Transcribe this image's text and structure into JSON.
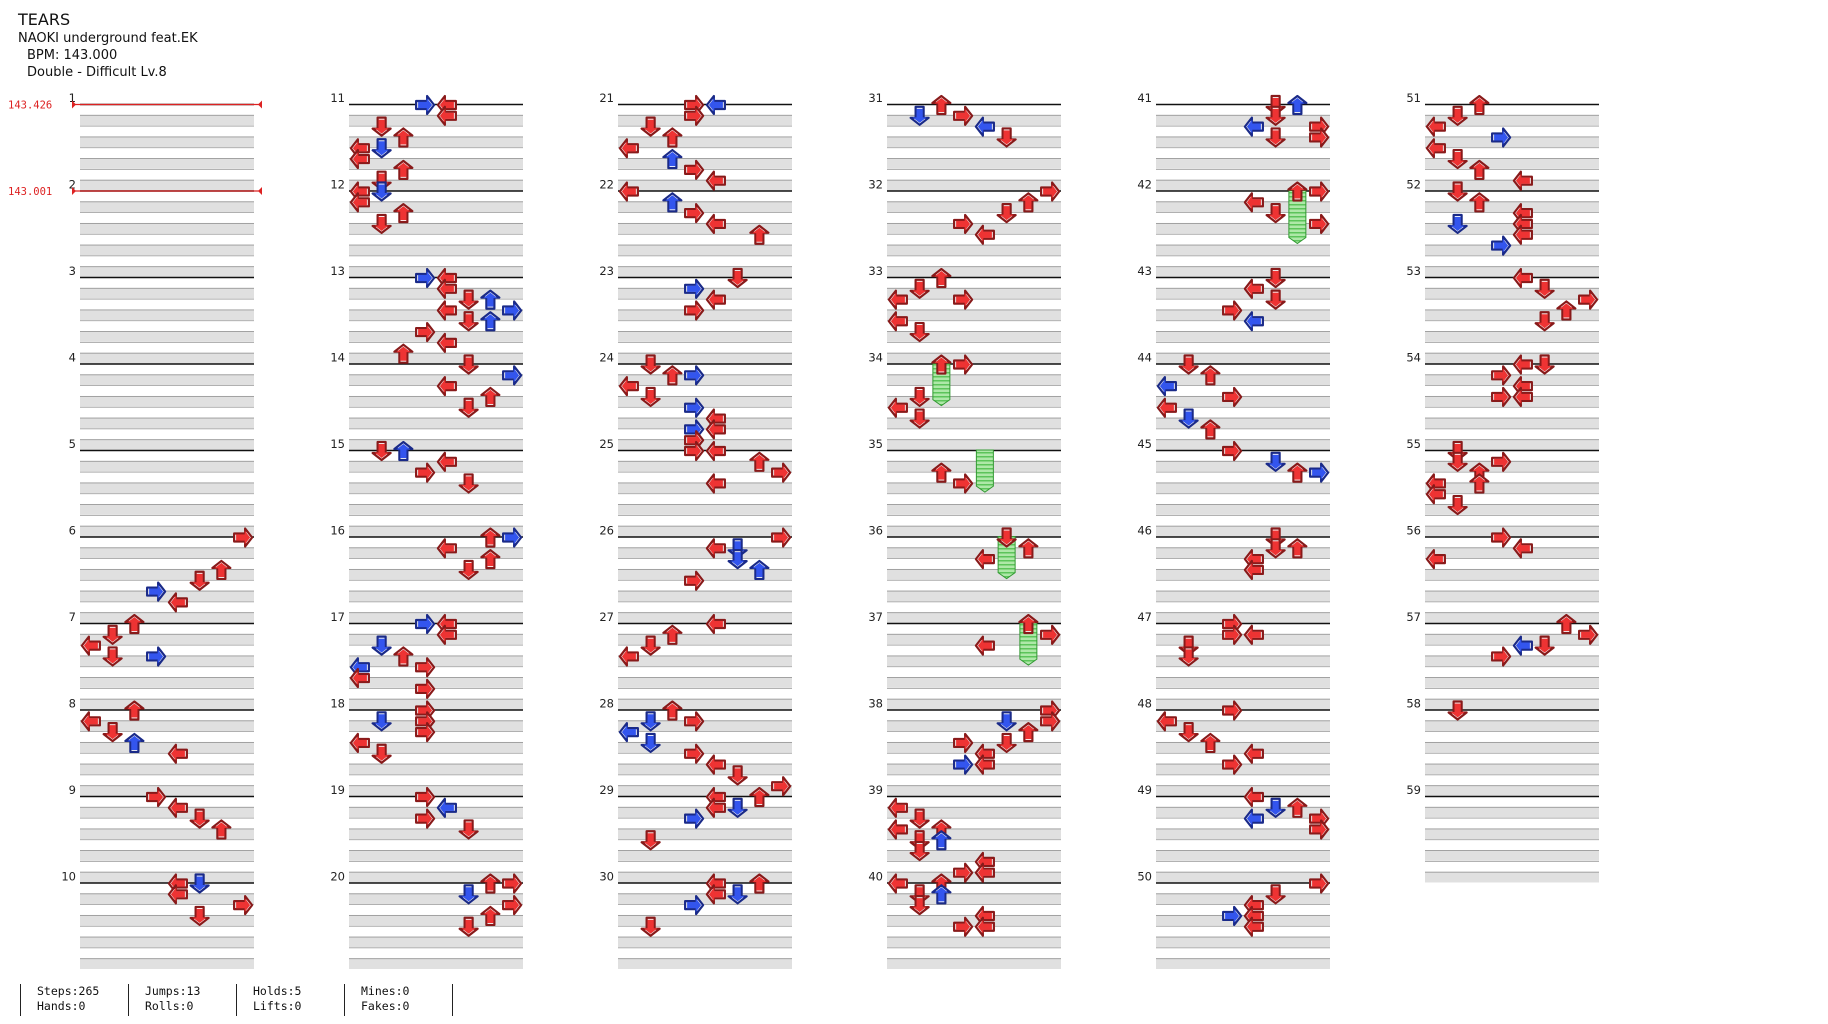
{
  "song": {
    "title": "TEARS",
    "artist": "NAOKI underground feat.EK",
    "bpm_label": "BPM: 143.000",
    "difficulty": "Double - Difficult  Lv.8"
  },
  "bpm_changes": [
    {
      "measure": 1,
      "label": "143.426"
    },
    {
      "measure": 2,
      "label": "143.001"
    }
  ],
  "layout": {
    "columns": 6,
    "measures_per_column": 10,
    "total_measures": 59,
    "lanes": 8
  },
  "colors": {
    "red_note": "#ee3333",
    "blue_note": "#3355ee",
    "hold_fill": "#88dd88",
    "hold_stroke": "#339933",
    "stripe": "#e0e0e0",
    "bpm_line": "#dd2222"
  },
  "icons": {
    "left": "arrow-left-icon",
    "down": "arrow-down-icon",
    "up": "arrow-up-icon",
    "right": "arrow-right-icon"
  },
  "stats": {
    "steps": "Steps:265",
    "hands": "Hands:0",
    "jumps": "Jumps:13",
    "rolls": "Rolls:0",
    "holds": "Holds:5",
    "lifts": "Lifts:0",
    "mines": "Mines:0",
    "fakes": "Fakes:0"
  },
  "notes": {
    "6": [
      [
        0,
        7,
        "r"
      ],
      [
        3,
        6,
        "r"
      ],
      [
        4,
        5,
        "r"
      ],
      [
        5,
        3,
        "b"
      ],
      [
        6,
        4,
        "r"
      ]
    ],
    "7": [
      [
        0,
        2,
        "r"
      ],
      [
        1,
        1,
        "r"
      ],
      [
        2,
        0,
        "r"
      ],
      [
        3,
        1,
        "r"
      ],
      [
        3,
        3,
        "b"
      ]
    ],
    "8": [
      [
        0,
        2,
        "r"
      ],
      [
        1,
        0,
        "r"
      ],
      [
        2,
        1,
        "r"
      ],
      [
        3,
        2,
        "b"
      ],
      [
        4,
        4,
        "r"
      ]
    ],
    "9": [
      [
        0,
        3,
        "r"
      ],
      [
        1,
        4,
        "r"
      ],
      [
        2,
        5,
        "r"
      ],
      [
        3,
        6,
        "r"
      ]
    ],
    "10": [
      [
        0,
        4,
        "r"
      ],
      [
        0,
        5,
        "b"
      ],
      [
        1,
        4,
        "r"
      ],
      [
        2,
        7,
        "r"
      ],
      [
        3,
        5,
        "r"
      ]
    ],
    "11": [
      [
        0,
        4,
        "r"
      ],
      [
        0,
        3,
        "b"
      ],
      [
        1,
        4,
        "r"
      ],
      [
        2,
        1,
        "r"
      ],
      [
        3,
        2,
        "r"
      ],
      [
        4,
        0,
        "r"
      ],
      [
        4,
        1,
        "b"
      ],
      [
        5,
        0,
        "r"
      ],
      [
        6,
        2,
        "r"
      ],
      [
        7,
        1,
        "r"
      ]
    ],
    "12": [
      [
        0,
        0,
        "r"
      ],
      [
        0,
        1,
        "b"
      ],
      [
        1,
        0,
        "r"
      ],
      [
        2,
        2,
        "r"
      ],
      [
        3,
        1,
        "r"
      ]
    ],
    "13": [
      [
        0,
        4,
        "r"
      ],
      [
        0,
        3,
        "b"
      ],
      [
        1,
        4,
        "r"
      ],
      [
        2,
        5,
        "r"
      ],
      [
        2,
        6,
        "b"
      ],
      [
        3,
        4,
        "r"
      ],
      [
        3,
        7,
        "b"
      ],
      [
        4,
        5,
        "r"
      ],
      [
        4,
        6,
        "b"
      ],
      [
        5,
        3,
        "r"
      ],
      [
        6,
        4,
        "r"
      ],
      [
        7,
        2,
        "r"
      ]
    ],
    "14": [
      [
        0,
        5,
        "r"
      ],
      [
        1,
        7,
        "b"
      ],
      [
        2,
        4,
        "r"
      ],
      [
        3,
        6,
        "r"
      ],
      [
        4,
        5,
        "r"
      ]
    ],
    "15": [
      [
        0,
        1,
        "r"
      ],
      [
        0,
        2,
        "b"
      ],
      [
        1,
        4,
        "r"
      ],
      [
        2,
        3,
        "r"
      ],
      [
        3,
        5,
        "r"
      ]
    ],
    "16": [
      [
        0,
        6,
        "r"
      ],
      [
        0,
        7,
        "b"
      ],
      [
        1,
        4,
        "r"
      ],
      [
        2,
        6,
        "r"
      ],
      [
        3,
        5,
        "r"
      ]
    ],
    "17": [
      [
        0,
        4,
        "r"
      ],
      [
        0,
        3,
        "b"
      ],
      [
        1,
        4,
        "r"
      ],
      [
        2,
        1,
        "b"
      ],
      [
        3,
        2,
        "r"
      ],
      [
        4,
        0,
        "b"
      ],
      [
        4,
        3,
        "r"
      ],
      [
        5,
        0,
        "r"
      ],
      [
        6,
        3,
        "r"
      ]
    ],
    "18": [
      [
        0,
        3,
        "r"
      ],
      [
        1,
        1,
        "b"
      ],
      [
        1,
        3,
        "r"
      ],
      [
        2,
        3,
        "r"
      ],
      [
        3,
        0,
        "r"
      ],
      [
        4,
        1,
        "r"
      ]
    ],
    "19": [
      [
        0,
        3,
        "r"
      ],
      [
        1,
        4,
        "b"
      ],
      [
        2,
        3,
        "r"
      ],
      [
        3,
        5,
        "r"
      ]
    ],
    "20": [
      [
        0,
        6,
        "r"
      ],
      [
        0,
        7,
        "r"
      ],
      [
        1,
        5,
        "b"
      ],
      [
        2,
        7,
        "r"
      ],
      [
        3,
        6,
        "r"
      ],
      [
        4,
        5,
        "r"
      ]
    ],
    "21": [
      [
        0,
        3,
        "r"
      ],
      [
        0,
        4,
        "b"
      ],
      [
        1,
        3,
        "r"
      ],
      [
        2,
        1,
        "r"
      ],
      [
        3,
        2,
        "r"
      ],
      [
        4,
        0,
        "r"
      ],
      [
        5,
        2,
        "b"
      ],
      [
        6,
        3,
        "r"
      ],
      [
        7,
        4,
        "r"
      ]
    ],
    "22": [
      [
        0,
        0,
        "r"
      ],
      [
        1,
        2,
        "b"
      ],
      [
        2,
        3,
        "r"
      ],
      [
        3,
        4,
        "r"
      ],
      [
        4,
        6,
        "r"
      ]
    ],
    "23": [
      [
        0,
        5,
        "r"
      ],
      [
        1,
        3,
        "b"
      ],
      [
        2,
        4,
        "r"
      ],
      [
        3,
        3,
        "r"
      ]
    ],
    "24": [
      [
        0,
        1,
        "r"
      ],
      [
        1,
        2,
        "r"
      ],
      [
        1,
        3,
        "b"
      ],
      [
        2,
        0,
        "r"
      ],
      [
        3,
        1,
        "r"
      ],
      [
        4,
        3,
        "b"
      ],
      [
        5,
        4,
        "r"
      ],
      [
        6,
        3,
        "b"
      ],
      [
        6,
        4,
        "r"
      ],
      [
        7,
        3,
        "r"
      ]
    ],
    "25": [
      [
        0,
        4,
        "r"
      ],
      [
        0,
        3,
        "r"
      ],
      [
        1,
        6,
        "r"
      ],
      [
        2,
        7,
        "r"
      ],
      [
        3,
        4,
        "r"
      ]
    ],
    "26": [
      [
        0,
        7,
        "r"
      ],
      [
        1,
        5,
        "b"
      ],
      [
        1,
        4,
        "r"
      ],
      [
        2,
        5,
        "b"
      ],
      [
        3,
        6,
        "b"
      ],
      [
        4,
        3,
        "r"
      ]
    ],
    "27": [
      [
        0,
        4,
        "r"
      ],
      [
        1,
        2,
        "r"
      ],
      [
        2,
        1,
        "r"
      ],
      [
        3,
        0,
        "r"
      ]
    ],
    "28": [
      [
        0,
        2,
        "r"
      ],
      [
        1,
        1,
        "b"
      ],
      [
        1,
        3,
        "r"
      ],
      [
        2,
        0,
        "b"
      ],
      [
        3,
        1,
        "b"
      ],
      [
        4,
        3,
        "r"
      ],
      [
        5,
        4,
        "r"
      ],
      [
        6,
        5,
        "r"
      ],
      [
        7,
        7,
        "r"
      ]
    ],
    "29": [
      [
        0,
        4,
        "r"
      ],
      [
        0,
        6,
        "r"
      ],
      [
        1,
        5,
        "b"
      ],
      [
        1,
        4,
        "r"
      ],
      [
        2,
        3,
        "b"
      ],
      [
        4,
        1,
        "r"
      ]
    ],
    "30": [
      [
        0,
        4,
        "r"
      ],
      [
        0,
        6,
        "r"
      ],
      [
        1,
        5,
        "b"
      ],
      [
        1,
        4,
        "r"
      ],
      [
        2,
        3,
        "b"
      ],
      [
        4,
        1,
        "r"
      ]
    ],
    "31": [
      [
        0,
        2,
        "r"
      ],
      [
        1,
        1,
        "b"
      ],
      [
        1,
        3,
        "r"
      ],
      [
        2,
        4,
        "b"
      ],
      [
        3,
        5,
        "r"
      ]
    ],
    "32": [
      [
        0,
        7,
        "r"
      ],
      [
        1,
        6,
        "r"
      ],
      [
        2,
        5,
        "r"
      ],
      [
        3,
        3,
        "r"
      ],
      [
        4,
        4,
        "r"
      ]
    ],
    "33": [
      [
        0,
        2,
        "r"
      ],
      [
        1,
        1,
        "r"
      ],
      [
        2,
        0,
        "r"
      ],
      [
        2,
        3,
        "r"
      ],
      [
        4,
        0,
        "r"
      ],
      [
        5,
        1,
        "r"
      ]
    ],
    "34": [
      [
        0,
        3,
        "r"
      ],
      [
        0,
        2,
        "r"
      ],
      [
        3,
        1,
        "r"
      ],
      [
        4,
        0,
        "r"
      ],
      [
        5,
        1,
        "r"
      ]
    ],
    "35": [
      [
        2,
        2,
        "r"
      ],
      [
        3,
        3,
        "r"
      ]
    ],
    "36": [
      [
        0,
        5,
        "r"
      ],
      [
        1,
        6,
        "r"
      ],
      [
        2,
        4,
        "r"
      ]
    ],
    "37": [
      [
        0,
        6,
        "r"
      ],
      [
        1,
        7,
        "r"
      ],
      [
        2,
        4,
        "r"
      ]
    ],
    "38": [
      [
        0,
        7,
        "r"
      ],
      [
        1,
        5,
        "b"
      ],
      [
        1,
        7,
        "r"
      ],
      [
        2,
        6,
        "r"
      ],
      [
        3,
        3,
        "r"
      ],
      [
        3,
        5,
        "r"
      ],
      [
        4,
        4,
        "r"
      ],
      [
        5,
        3,
        "b"
      ],
      [
        5,
        4,
        "r"
      ]
    ],
    "39": [
      [
        1,
        0,
        "r"
      ],
      [
        2,
        1,
        "r"
      ],
      [
        3,
        0,
        "r"
      ],
      [
        3,
        2,
        "r"
      ],
      [
        4,
        1,
        "r"
      ],
      [
        4,
        2,
        "b"
      ],
      [
        5,
        1,
        "r"
      ],
      [
        6,
        4,
        "r"
      ],
      [
        7,
        3,
        "r"
      ],
      [
        7,
        4,
        "r"
      ]
    ],
    "40": [
      [
        0,
        0,
        "r"
      ],
      [
        0,
        2,
        "r"
      ],
      [
        1,
        1,
        "r"
      ],
      [
        1,
        2,
        "b"
      ],
      [
        2,
        1,
        "r"
      ],
      [
        3,
        4,
        "r"
      ],
      [
        4,
        3,
        "r"
      ],
      [
        4,
        4,
        "r"
      ]
    ],
    "41": [
      [
        0,
        5,
        "r"
      ],
      [
        0,
        6,
        "b"
      ],
      [
        1,
        5,
        "r"
      ],
      [
        2,
        4,
        "b"
      ],
      [
        2,
        7,
        "r"
      ],
      [
        3,
        5,
        "r"
      ],
      [
        3,
        7,
        "r"
      ]
    ],
    "42": [
      [
        0,
        6,
        "r"
      ],
      [
        0,
        7,
        "r"
      ],
      [
        1,
        4,
        "r"
      ],
      [
        2,
        5,
        "r"
      ],
      [
        3,
        7,
        "r"
      ]
    ],
    "43": [
      [
        0,
        5,
        "r"
      ],
      [
        1,
        4,
        "r"
      ],
      [
        2,
        5,
        "r"
      ],
      [
        3,
        3,
        "r"
      ],
      [
        4,
        4,
        "b"
      ]
    ],
    "44": [
      [
        0,
        1,
        "r"
      ],
      [
        1,
        2,
        "r"
      ],
      [
        2,
        0,
        "b"
      ],
      [
        3,
        3,
        "r"
      ],
      [
        4,
        0,
        "r"
      ],
      [
        5,
        1,
        "b"
      ],
      [
        6,
        2,
        "r"
      ]
    ],
    "45": [
      [
        0,
        3,
        "r"
      ],
      [
        1,
        5,
        "b"
      ],
      [
        2,
        6,
        "r"
      ],
      [
        2,
        7,
        "b"
      ]
    ],
    "46": [
      [
        0,
        5,
        "r"
      ],
      [
        1,
        5,
        "r"
      ],
      [
        1,
        6,
        "r"
      ],
      [
        2,
        4,
        "r"
      ],
      [
        3,
        4,
        "r"
      ]
    ],
    "47": [
      [
        0,
        3,
        "r"
      ],
      [
        1,
        3,
        "r"
      ],
      [
        1,
        4,
        "r"
      ],
      [
        2,
        1,
        "r"
      ],
      [
        3,
        1,
        "r"
      ]
    ],
    "48": [
      [
        0,
        3,
        "r"
      ],
      [
        1,
        0,
        "r"
      ],
      [
        2,
        1,
        "r"
      ],
      [
        3,
        2,
        "r"
      ],
      [
        4,
        4,
        "r"
      ],
      [
        5,
        3,
        "r"
      ]
    ],
    "49": [
      [
        0,
        4,
        "r"
      ],
      [
        1,
        5,
        "b"
      ],
      [
        1,
        6,
        "r"
      ],
      [
        2,
        4,
        "b"
      ],
      [
        2,
        7,
        "r"
      ],
      [
        3,
        7,
        "r"
      ]
    ],
    "50": [
      [
        0,
        7,
        "r"
      ],
      [
        1,
        5,
        "r"
      ],
      [
        2,
        4,
        "r"
      ],
      [
        3,
        3,
        "b"
      ],
      [
        3,
        4,
        "r"
      ],
      [
        4,
        4,
        "r"
      ]
    ],
    "51": [
      [
        0,
        2,
        "r"
      ],
      [
        1,
        1,
        "r"
      ],
      [
        2,
        0,
        "r"
      ],
      [
        3,
        3,
        "b"
      ],
      [
        4,
        0,
        "r"
      ],
      [
        5,
        1,
        "r"
      ],
      [
        6,
        2,
        "r"
      ],
      [
        7,
        4,
        "r"
      ]
    ],
    "52": [
      [
        0,
        1,
        "r"
      ],
      [
        1,
        2,
        "r"
      ],
      [
        2,
        4,
        "r"
      ],
      [
        3,
        1,
        "b"
      ],
      [
        3,
        4,
        "r"
      ],
      [
        4,
        4,
        "r"
      ],
      [
        5,
        3,
        "b"
      ]
    ],
    "53": [
      [
        0,
        4,
        "r"
      ],
      [
        1,
        5,
        "r"
      ],
      [
        2,
        7,
        "r"
      ],
      [
        3,
        6,
        "r"
      ],
      [
        4,
        5,
        "r"
      ]
    ],
    "54": [
      [
        0,
        4,
        "r"
      ],
      [
        0,
        5,
        "r"
      ],
      [
        1,
        3,
        "r"
      ],
      [
        2,
        4,
        "r"
      ],
      [
        3,
        3,
        "r"
      ],
      [
        3,
        4,
        "r"
      ]
    ],
    "55": [
      [
        0,
        1,
        "r"
      ],
      [
        1,
        1,
        "r"
      ],
      [
        1,
        3,
        "r"
      ],
      [
        2,
        2,
        "r"
      ],
      [
        3,
        0,
        "r"
      ],
      [
        3,
        2,
        "r"
      ],
      [
        4,
        0,
        "r"
      ],
      [
        5,
        1,
        "r"
      ]
    ],
    "56": [
      [
        0,
        3,
        "r"
      ],
      [
        1,
        4,
        "r"
      ],
      [
        2,
        0,
        "r"
      ]
    ],
    "57": [
      [
        0,
        6,
        "r"
      ],
      [
        1,
        7,
        "r"
      ],
      [
        2,
        5,
        "r"
      ],
      [
        2,
        4,
        "b"
      ],
      [
        3,
        3,
        "r"
      ]
    ],
    "58": [
      [
        0,
        1,
        "r"
      ]
    ]
  },
  "holds": [
    {
      "measure": 42,
      "lane": 6,
      "start": 0,
      "end": 4
    },
    {
      "measure": 34,
      "lane": 2,
      "start": 0,
      "end": 3
    },
    {
      "measure": 35,
      "lane": 4,
      "start": 0,
      "end": 3
    },
    {
      "measure": 36,
      "lane": 5,
      "start": 0,
      "end": 3
    },
    {
      "measure": 37,
      "lane": 6,
      "start": 0,
      "end": 3
    }
  ]
}
